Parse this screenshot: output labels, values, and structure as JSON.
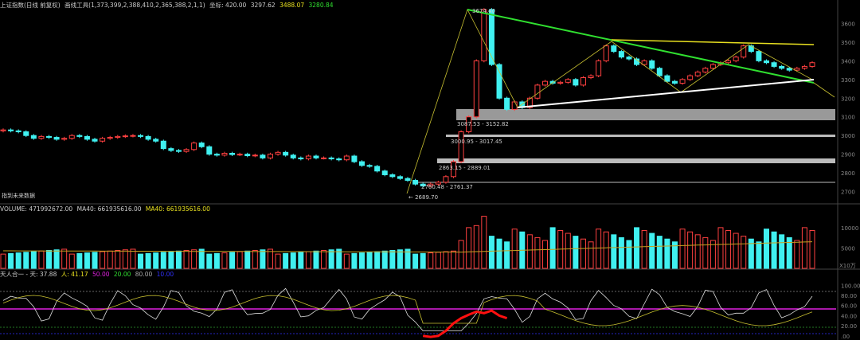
{
  "header": {
    "index_name": "上证指数(日线 前复权)",
    "tool_info": "画线工具(1,373,399,2,388,410,2,365,388,2,1,1)",
    "coord_label": "坐标: 420.00",
    "coord_value": "3297.62",
    "yellow_value": "3488.07",
    "green_value": "3280.84"
  },
  "volume_header": {
    "label": "VOLUME: 471992672.00",
    "ma40_white": "MA40: 661935616.00",
    "ma40_yellow": "MA40: 661935616.00"
  },
  "indicator_header": {
    "name": "天人合一 - 天: 37.88",
    "ren": "人: 41.17",
    "v50": "50.00",
    "v20": "20.00",
    "v80": "80.00",
    "v10": "10.00"
  },
  "annotations": {
    "peak": "3674.40",
    "low": "← 2689.70",
    "future_label": "指到未来数据",
    "band1": "3087.53 - 3152.82",
    "band2": "3000.95 - 3017.45",
    "band3": "2863.15 - 2889.01",
    "band4": "2760.48 - 2761.37"
  },
  "volume_unit": "X10万",
  "chart_data": {
    "type": "candlestick",
    "price_axis": {
      "ticks": [
        2700,
        2800,
        2900,
        3000,
        3100,
        3200,
        3300,
        3400,
        3500,
        3600
      ],
      "range": [
        2650,
        3700
      ]
    },
    "volume_axis": {
      "ticks": [
        5000,
        10000
      ],
      "range": [
        0,
        13500
      ]
    },
    "indicator_axis": {
      "ticks": [
        0.0,
        20.0,
        40.0,
        60.0,
        80.0,
        100.0
      ],
      "range": [
        -5,
        110
      ],
      "tick_labels": [
        ".00",
        "20.00",
        "40.00",
        "60.00",
        "80.00",
        "100.00"
      ]
    },
    "price_ticks_labels": [
      "2700",
      "2800",
      "2900",
      "3000",
      "3100",
      "3200",
      "3300",
      "3400",
      "3500",
      "3600"
    ],
    "volume_ticks_labels": [
      "5000",
      "10000"
    ],
    "closes": [
      3030,
      3025,
      3020,
      3000,
      2985,
      2995,
      2990,
      2980,
      2985,
      3000,
      2995,
      2980,
      2970,
      2985,
      2990,
      2995,
      2998,
      3000,
      2995,
      2980,
      2970,
      2930,
      2920,
      2915,
      2925,
      2960,
      2940,
      2900,
      2895,
      2905,
      2898,
      2900,
      2892,
      2895,
      2880,
      2900,
      2910,
      2895,
      2880,
      2875,
      2890,
      2880,
      2880,
      2875,
      2870,
      2890,
      2860,
      2840,
      2835,
      2810,
      2790,
      2780,
      2770,
      2760,
      2740,
      2730,
      2740,
      2750,
      2780,
      2860,
      3020,
      3100,
      3400,
      3674,
      3380,
      3200,
      3140,
      3180,
      3150,
      3200,
      3270,
      3290,
      3280,
      3285,
      3300,
      3270,
      3310,
      3320,
      3400,
      3480,
      3450,
      3420,
      3410,
      3380,
      3400,
      3360,
      3320,
      3290,
      3280,
      3300,
      3320,
      3340,
      3360,
      3380,
      3390,
      3400,
      3420,
      3480,
      3450,
      3400,
      3390,
      3370,
      3360,
      3350,
      3360,
      3370,
      3390
    ]
  }
}
